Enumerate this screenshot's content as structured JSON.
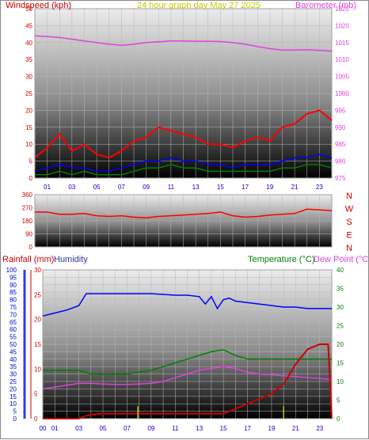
{
  "chart_data": [
    {
      "type": "line",
      "title": "24 hour graph day   May 27 2025",
      "ylabel_left": "Windspeed (kph)",
      "ylabel_right": "Barometer (mb)",
      "ylim_left": [
        0,
        50
      ],
      "ylim_right": [
        975,
        1025
      ],
      "yticks_left": [
        "0",
        "5",
        "10",
        "15",
        "20",
        "25",
        "30",
        "35",
        "40",
        "45",
        "50"
      ],
      "yticks_right": [
        "975",
        "980",
        "985",
        "990",
        "995",
        "1000",
        "1005",
        "1010",
        "1015",
        "1020",
        "1025"
      ],
      "xticks": [
        "01",
        "03",
        "05",
        "07",
        "09",
        "11",
        "13",
        "15",
        "17",
        "19",
        "21",
        "23"
      ],
      "series": [
        {
          "name": "Barometer",
          "color": "#e040e0",
          "x": [
            0,
            1,
            2,
            3,
            4,
            5,
            6,
            7,
            8,
            9,
            10,
            11,
            12,
            13,
            14,
            15,
            16,
            17,
            18,
            19,
            20,
            21,
            22,
            23,
            24
          ],
          "values": [
            1017,
            1016.8,
            1016.5,
            1016,
            1015.5,
            1015,
            1014.5,
            1014.2,
            1014.5,
            1015,
            1015.2,
            1015.5,
            1015.5,
            1015.4,
            1015.4,
            1015.3,
            1015,
            1014.5,
            1013.8,
            1013.2,
            1012.8,
            1012.8,
            1012.9,
            1012.7,
            1012.5
          ]
        },
        {
          "name": "Wind gust",
          "color": "#ff0000",
          "x": [
            0,
            1,
            2,
            3,
            4,
            5,
            6,
            7,
            8,
            9,
            10,
            11,
            12,
            13,
            14,
            15,
            16,
            17,
            18,
            19,
            20,
            21,
            22,
            23,
            24
          ],
          "values": [
            6,
            9,
            13,
            8,
            10,
            7,
            6,
            8,
            11,
            12,
            15,
            14,
            13,
            12,
            10,
            10,
            9,
            11,
            12,
            11,
            15,
            16,
            19,
            20,
            17
          ]
        },
        {
          "name": "Wind speed",
          "color": "#0000ff",
          "x": [
            0,
            1,
            2,
            3,
            4,
            5,
            6,
            7,
            8,
            9,
            10,
            11,
            12,
            13,
            14,
            15,
            16,
            17,
            18,
            19,
            20,
            21,
            22,
            23,
            24
          ],
          "values": [
            2,
            3,
            4,
            3,
            3,
            2,
            2,
            3,
            4,
            5,
            5,
            6,
            5,
            5,
            4,
            4,
            3,
            4,
            4,
            4,
            5,
            6,
            6,
            7,
            6
          ]
        },
        {
          "name": "Wind avg",
          "color": "#008000",
          "x": [
            0,
            1,
            2,
            3,
            4,
            5,
            6,
            7,
            8,
            9,
            10,
            11,
            12,
            13,
            14,
            15,
            16,
            17,
            18,
            19,
            20,
            21,
            22,
            23,
            24
          ],
          "values": [
            1,
            1,
            2,
            1,
            2,
            1,
            1,
            1,
            2,
            3,
            3,
            4,
            3,
            3,
            2,
            2,
            2,
            2,
            2,
            2,
            3,
            3,
            4,
            4,
            3
          ]
        }
      ]
    },
    {
      "type": "line",
      "yticks": [
        "0",
        "90",
        "180",
        "270",
        "360"
      ],
      "ylim": [
        0,
        360
      ],
      "compass": [
        "N",
        "W",
        "S",
        "E",
        "N"
      ],
      "series": [
        {
          "name": "Wind direction",
          "color": "#ff0000",
          "x": [
            0,
            1,
            2,
            3,
            4,
            5,
            6,
            7,
            8,
            9,
            10,
            11,
            12,
            13,
            14,
            15,
            16,
            17,
            18,
            19,
            20,
            21,
            22,
            23,
            24
          ],
          "values": [
            240,
            240,
            225,
            225,
            230,
            215,
            210,
            215,
            205,
            200,
            210,
            215,
            220,
            225,
            230,
            240,
            215,
            205,
            210,
            220,
            225,
            230,
            260,
            255,
            250
          ]
        }
      ]
    },
    {
      "type": "line",
      "ylabel_left": "Rainfall (mm)",
      "ylabel_left2": "Humidity",
      "ylabel_right": "Temperature (°C)",
      "ylabel_right2": "Dew Point (°C)",
      "ylim_humidity": [
        0,
        100
      ],
      "ylim_rain": [
        0,
        30
      ],
      "ylim_temp": [
        0,
        40
      ],
      "yticks_humidity": [
        "0",
        "5",
        "10",
        "15",
        "20",
        "25",
        "30",
        "35",
        "40",
        "45",
        "50",
        "55",
        "60",
        "65",
        "70",
        "75",
        "80",
        "85",
        "90",
        "95",
        "100"
      ],
      "yticks_rain": [
        "0",
        "5",
        "10",
        "15",
        "20",
        "25",
        "30"
      ],
      "yticks_temp": [
        "0",
        "5",
        "10",
        "15",
        "20",
        "25",
        "30",
        "35",
        "40"
      ],
      "xticks": [
        "00",
        "01",
        "03",
        "05",
        "07",
        "09",
        "11",
        "13",
        "15",
        "17",
        "19",
        "21",
        "23"
      ],
      "series": [
        {
          "name": "Humidity",
          "color": "#0000ff",
          "x": [
            0,
            1,
            2,
            3,
            3.6,
            5,
            7,
            9,
            11,
            12,
            13,
            13.5,
            14,
            14.5,
            15,
            15.5,
            16,
            17,
            18,
            19,
            20,
            21,
            22,
            23,
            24
          ],
          "values": [
            69,
            71,
            73,
            76,
            84,
            84,
            84,
            84,
            83,
            83,
            82,
            77,
            82,
            74,
            80,
            81,
            79,
            78,
            77,
            76,
            75,
            75,
            74,
            74,
            74
          ]
        },
        {
          "name": "Temperature",
          "color": "#008000",
          "x": [
            0,
            1,
            2,
            3,
            4,
            5,
            6,
            7,
            8,
            9,
            10,
            11,
            12,
            13,
            14,
            15,
            16,
            17,
            18,
            19,
            20,
            21,
            22,
            23,
            24
          ],
          "values": [
            13,
            13,
            13,
            13,
            12,
            12,
            12,
            12,
            12.5,
            13,
            14,
            15,
            16,
            17,
            18,
            18.5,
            17,
            16,
            16,
            16,
            16,
            16,
            16,
            16,
            16
          ]
        },
        {
          "name": "Dew Point",
          "color": "#e040e0",
          "x": [
            0,
            1,
            2,
            3,
            4,
            5,
            6,
            7,
            8,
            9,
            10,
            11,
            12,
            13,
            14,
            15,
            16,
            17,
            18,
            19,
            20,
            21,
            22,
            23,
            24
          ],
          "values": [
            8,
            8.5,
            9,
            9.5,
            9.5,
            9.3,
            9.2,
            9.2,
            9.3,
            9.5,
            10,
            11,
            12,
            13,
            13.5,
            14,
            13.5,
            12.5,
            12,
            11.8,
            11.5,
            11.3,
            11,
            10.8,
            10.5
          ]
        },
        {
          "name": "Rainfall",
          "color": "#cc0000",
          "x": [
            0,
            1,
            2,
            3,
            3.5,
            4,
            5,
            6,
            7,
            8,
            9,
            10,
            11,
            12,
            13,
            14,
            15,
            16,
            17,
            18,
            19,
            20,
            21,
            22,
            23,
            23.7,
            24
          ],
          "values": [
            0,
            0,
            0,
            0,
            0.5,
            0.8,
            1,
            1,
            1,
            1,
            1,
            1,
            1,
            1,
            1,
            1,
            1,
            2,
            3,
            4,
            5,
            7,
            11,
            14,
            15,
            15,
            0
          ]
        },
        {
          "name": "Rain rate",
          "color": "#c8c800",
          "x": [
            7.9,
            20
          ],
          "values": [
            2.5,
            2.5
          ]
        }
      ]
    }
  ]
}
